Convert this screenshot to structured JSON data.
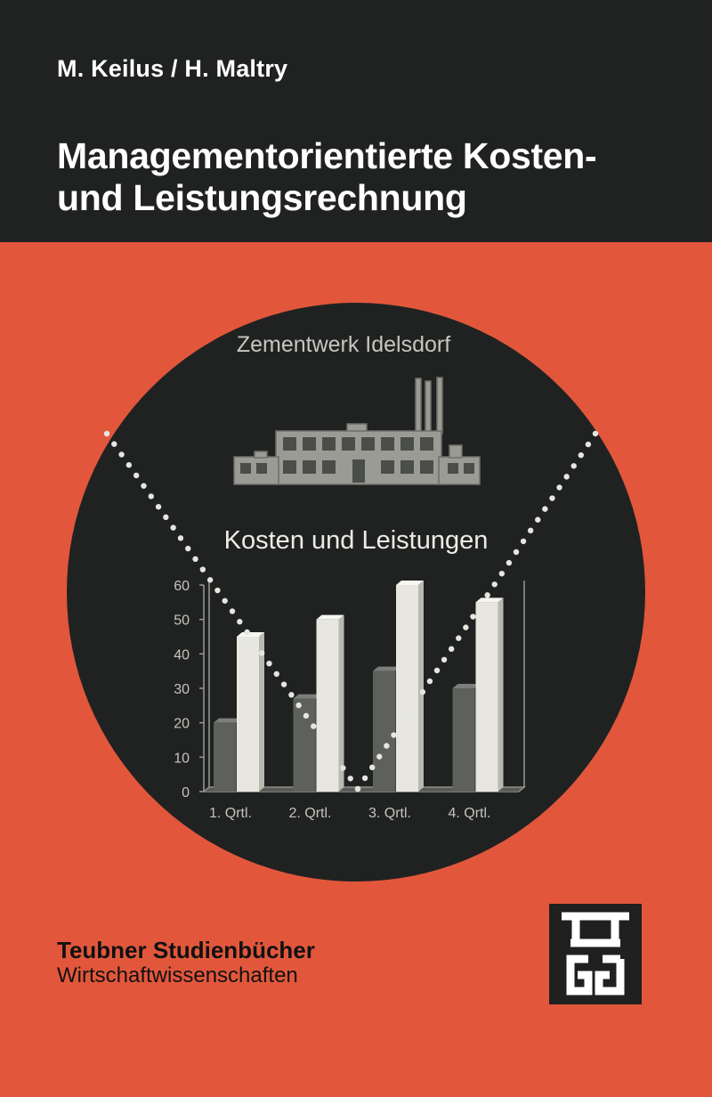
{
  "cover": {
    "authors": "M. Keilus / H. Maltry",
    "title_lines": [
      "Managementorientierte Kosten-",
      "und Leistungsrechnung"
    ],
    "colors": {
      "background": "#e2573c",
      "band": "#202221",
      "circle": "#202221"
    }
  },
  "illustration": {
    "company_label": "Zementwerk Idelsdorf",
    "chart_heading": "Kosten und Leistungen",
    "icon": "factory-icon"
  },
  "chart_data": {
    "type": "bar",
    "title": "Kosten und Leistungen",
    "categories": [
      "1. Qrtl.",
      "2. Qrtl.",
      "3. Qrtl.",
      "4. Qrtl."
    ],
    "series": [
      {
        "values": [
          20,
          27,
          35,
          30
        ],
        "color": "#5e605c"
      },
      {
        "values": [
          45,
          50,
          60,
          55
        ],
        "color": "#e8e7df"
      }
    ],
    "ylim": [
      0,
      60
    ],
    "yticks": [
      "0",
      "10",
      "20",
      "30",
      "40",
      "50",
      "60"
    ],
    "grid": false
  },
  "series_block": {
    "name": "Teubner Studienbücher",
    "subject": "Wirtschaftwissenschaften"
  },
  "publisher_logo": {
    "icon": "teubner-tg-logo"
  }
}
